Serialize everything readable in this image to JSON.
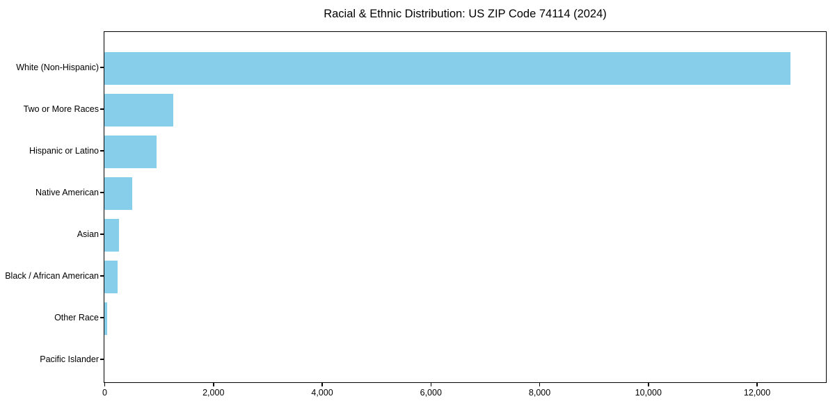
{
  "figure": {
    "title": "Racial & Ethnic Distribution: US ZIP Code 74114 (2024)"
  },
  "colors": {
    "bar": "#87CEEB",
    "axis": "#000000",
    "text": "#000000",
    "background": "#FFFFFF"
  },
  "chart_data": {
    "type": "bar",
    "orientation": "horizontal",
    "title": "Racial & Ethnic Distribution: US ZIP Code 74114 (2024)",
    "categories": [
      "White (Non-Hispanic)",
      "Two or More Races",
      "Hispanic or Latino",
      "Native American",
      "Asian",
      "Black / African American",
      "Other Race",
      "Pacific Islander"
    ],
    "values": [
      12620,
      1270,
      960,
      510,
      270,
      240,
      55,
      0
    ],
    "xlabel": "",
    "ylabel": "",
    "xlim": [
      0,
      13260
    ],
    "x_ticks": [
      0,
      2000,
      4000,
      6000,
      8000,
      10000,
      12000
    ],
    "x_tick_labels": [
      "0",
      "2,000",
      "4,000",
      "6,000",
      "8,000",
      "10,000",
      "12,000"
    ],
    "bar_color": "#87CEEB",
    "grid": false,
    "legend": false
  }
}
